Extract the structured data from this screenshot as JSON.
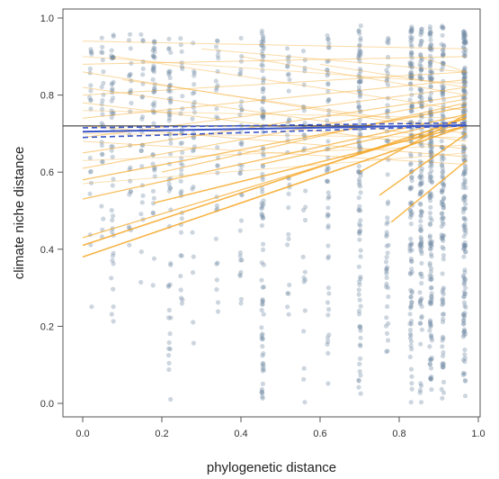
{
  "chart_data": {
    "type": "scatter",
    "title": "",
    "xlabel": "phylogenetic distance",
    "ylabel": "climate niche distance",
    "xlim": [
      0,
      1
    ],
    "ylim": [
      0,
      1
    ],
    "x_ticks": [
      "0.0",
      "0.2",
      "0.4",
      "0.6",
      "0.8",
      "1.0"
    ],
    "y_ticks": [
      "0.0",
      "0.2",
      "0.4",
      "0.6",
      "0.8",
      "1.0"
    ],
    "grid": false,
    "legend": "none",
    "colors": {
      "points": "#6f8aa3",
      "species_lines": "#f5a623",
      "reference_line": "#222222",
      "mean_fit": "#3a56c8"
    },
    "reference_line": {
      "y": 0.72
    },
    "mean_fit": {
      "x": [
        0,
        0.97
      ],
      "y": [
        0.705,
        0.722
      ]
    },
    "mean_fit_ci": [
      {
        "x": [
          0,
          0.97
        ],
        "y": [
          0.69,
          0.72
        ]
      },
      {
        "x": [
          0,
          0.97
        ],
        "y": [
          0.715,
          0.728
        ]
      }
    ],
    "point_columns": [
      {
        "x": 0.02,
        "n": 20,
        "ymin": 0.25,
        "ymax": 0.95
      },
      {
        "x": 0.05,
        "n": 25,
        "ymin": 0.35,
        "ymax": 0.95
      },
      {
        "x": 0.075,
        "n": 45,
        "ymin": 0.2,
        "ymax": 0.96
      },
      {
        "x": 0.12,
        "n": 25,
        "ymin": 0.35,
        "ymax": 0.96
      },
      {
        "x": 0.15,
        "n": 25,
        "ymin": 0.3,
        "ymax": 0.96
      },
      {
        "x": 0.18,
        "n": 45,
        "ymin": 0.3,
        "ymax": 0.96
      },
      {
        "x": 0.22,
        "n": 55,
        "ymin": 0.0,
        "ymax": 0.95
      },
      {
        "x": 0.25,
        "n": 35,
        "ymin": 0.1,
        "ymax": 0.95
      },
      {
        "x": 0.28,
        "n": 25,
        "ymin": 0.05,
        "ymax": 0.95
      },
      {
        "x": 0.34,
        "n": 30,
        "ymin": 0.2,
        "ymax": 0.95
      },
      {
        "x": 0.4,
        "n": 35,
        "ymin": 0.15,
        "ymax": 0.95
      },
      {
        "x": 0.455,
        "n": 100,
        "ymin": 0.0,
        "ymax": 0.98
      },
      {
        "x": 0.52,
        "n": 30,
        "ymin": 0.1,
        "ymax": 0.95
      },
      {
        "x": 0.56,
        "n": 30,
        "ymin": 0.0,
        "ymax": 0.95
      },
      {
        "x": 0.62,
        "n": 55,
        "ymin": 0.05,
        "ymax": 0.96
      },
      {
        "x": 0.7,
        "n": 110,
        "ymin": 0.0,
        "ymax": 0.98
      },
      {
        "x": 0.77,
        "n": 55,
        "ymin": 0.05,
        "ymax": 0.96
      },
      {
        "x": 0.83,
        "n": 130,
        "ymin": 0.0,
        "ymax": 0.98
      },
      {
        "x": 0.855,
        "n": 120,
        "ymin": 0.0,
        "ymax": 0.98
      },
      {
        "x": 0.88,
        "n": 160,
        "ymin": 0.0,
        "ymax": 0.98
      },
      {
        "x": 0.91,
        "n": 130,
        "ymin": 0.0,
        "ymax": 0.98
      },
      {
        "x": 0.965,
        "n": 200,
        "ymin": 0.0,
        "ymax": 0.98
      }
    ],
    "species_lines": [
      {
        "x": [
          0.0,
          0.97
        ],
        "y": [
          0.38,
          0.72
        ],
        "opacity": 0.85,
        "width": 1.6
      },
      {
        "x": [
          0.0,
          0.97
        ],
        "y": [
          0.41,
          0.74
        ],
        "opacity": 0.85,
        "width": 1.6
      },
      {
        "x": [
          0.0,
          0.97
        ],
        "y": [
          0.43,
          0.73
        ],
        "opacity": 0.7,
        "width": 1.3
      },
      {
        "x": [
          0.0,
          0.97
        ],
        "y": [
          0.53,
          0.75
        ],
        "opacity": 0.7,
        "width": 1.3
      },
      {
        "x": [
          0.0,
          0.97
        ],
        "y": [
          0.58,
          0.77
        ],
        "opacity": 0.7,
        "width": 1.3
      },
      {
        "x": [
          0.0,
          0.97
        ],
        "y": [
          0.61,
          0.79
        ],
        "opacity": 0.55,
        "width": 1.1
      },
      {
        "x": [
          0.0,
          0.97
        ],
        "y": [
          0.65,
          0.8
        ],
        "opacity": 0.55,
        "width": 1.1
      },
      {
        "x": [
          0.0,
          0.97
        ],
        "y": [
          0.69,
          0.82
        ],
        "opacity": 0.5,
        "width": 1.0
      },
      {
        "x": [
          0.0,
          0.97
        ],
        "y": [
          0.74,
          0.84
        ],
        "opacity": 0.5,
        "width": 1.0
      },
      {
        "x": [
          0.0,
          0.97
        ],
        "y": [
          0.8,
          0.86
        ],
        "opacity": 0.45,
        "width": 1.0
      },
      {
        "x": [
          0.0,
          0.97
        ],
        "y": [
          0.88,
          0.9
        ],
        "opacity": 0.45,
        "width": 1.0
      },
      {
        "x": [
          0.0,
          0.97
        ],
        "y": [
          0.94,
          0.92
        ],
        "opacity": 0.4,
        "width": 1.0
      },
      {
        "x": [
          0.0,
          0.97
        ],
        "y": [
          0.86,
          0.7
        ],
        "opacity": 0.45,
        "width": 1.0
      },
      {
        "x": [
          0.0,
          0.97
        ],
        "y": [
          0.82,
          0.68
        ],
        "opacity": 0.45,
        "width": 1.0
      },
      {
        "x": [
          0.0,
          0.97
        ],
        "y": [
          0.78,
          0.66
        ],
        "opacity": 0.45,
        "width": 1.0
      },
      {
        "x": [
          0.0,
          0.97
        ],
        "y": [
          0.72,
          0.64
        ],
        "opacity": 0.45,
        "width": 1.0
      },
      {
        "x": [
          0.0,
          0.97
        ],
        "y": [
          0.68,
          0.62
        ],
        "opacity": 0.4,
        "width": 1.0
      },
      {
        "x": [
          0.08,
          0.97
        ],
        "y": [
          0.9,
          0.76
        ],
        "opacity": 0.4,
        "width": 1.0
      },
      {
        "x": [
          0.1,
          0.97
        ],
        "y": [
          0.84,
          0.71
        ],
        "opacity": 0.4,
        "width": 1.0
      },
      {
        "x": [
          0.18,
          0.97
        ],
        "y": [
          0.52,
          0.72
        ],
        "opacity": 0.8,
        "width": 1.5
      },
      {
        "x": [
          0.2,
          0.97
        ],
        "y": [
          0.6,
          0.78
        ],
        "opacity": 0.6,
        "width": 1.2
      },
      {
        "x": [
          0.3,
          0.97
        ],
        "y": [
          0.92,
          0.86
        ],
        "opacity": 0.4,
        "width": 1.0
      },
      {
        "x": [
          0.4,
          0.97
        ],
        "y": [
          0.9,
          0.8
        ],
        "opacity": 0.4,
        "width": 1.0
      },
      {
        "x": [
          0.45,
          0.97
        ],
        "y": [
          0.62,
          0.74
        ],
        "opacity": 0.7,
        "width": 1.3
      },
      {
        "x": [
          0.6,
          0.97
        ],
        "y": [
          0.88,
          0.82
        ],
        "opacity": 0.4,
        "width": 1.0
      },
      {
        "x": [
          0.7,
          0.97
        ],
        "y": [
          0.6,
          0.75
        ],
        "opacity": 0.8,
        "width": 1.5
      },
      {
        "x": [
          0.75,
          0.97
        ],
        "y": [
          0.54,
          0.7
        ],
        "opacity": 0.8,
        "width": 1.5
      },
      {
        "x": [
          0.78,
          0.97
        ],
        "y": [
          0.47,
          0.63
        ],
        "opacity": 0.8,
        "width": 1.5
      },
      {
        "x": [
          0.85,
          0.97
        ],
        "y": [
          0.9,
          0.86
        ],
        "opacity": 0.4,
        "width": 1.0
      },
      {
        "x": [
          0.0,
          0.97
        ],
        "y": [
          0.7,
          0.69
        ],
        "opacity": 0.35,
        "width": 1.0
      },
      {
        "x": [
          0.0,
          0.97
        ],
        "y": [
          0.76,
          0.74
        ],
        "opacity": 0.35,
        "width": 1.0
      },
      {
        "x": [
          0.0,
          0.97
        ],
        "y": [
          0.63,
          0.67
        ],
        "opacity": 0.35,
        "width": 1.0
      },
      {
        "x": [
          0.0,
          0.97
        ],
        "y": [
          0.57,
          0.65
        ],
        "opacity": 0.35,
        "width": 1.0
      },
      {
        "x": [
          0.0,
          0.97
        ],
        "y": [
          0.9,
          0.83
        ],
        "opacity": 0.35,
        "width": 1.0
      }
    ]
  }
}
